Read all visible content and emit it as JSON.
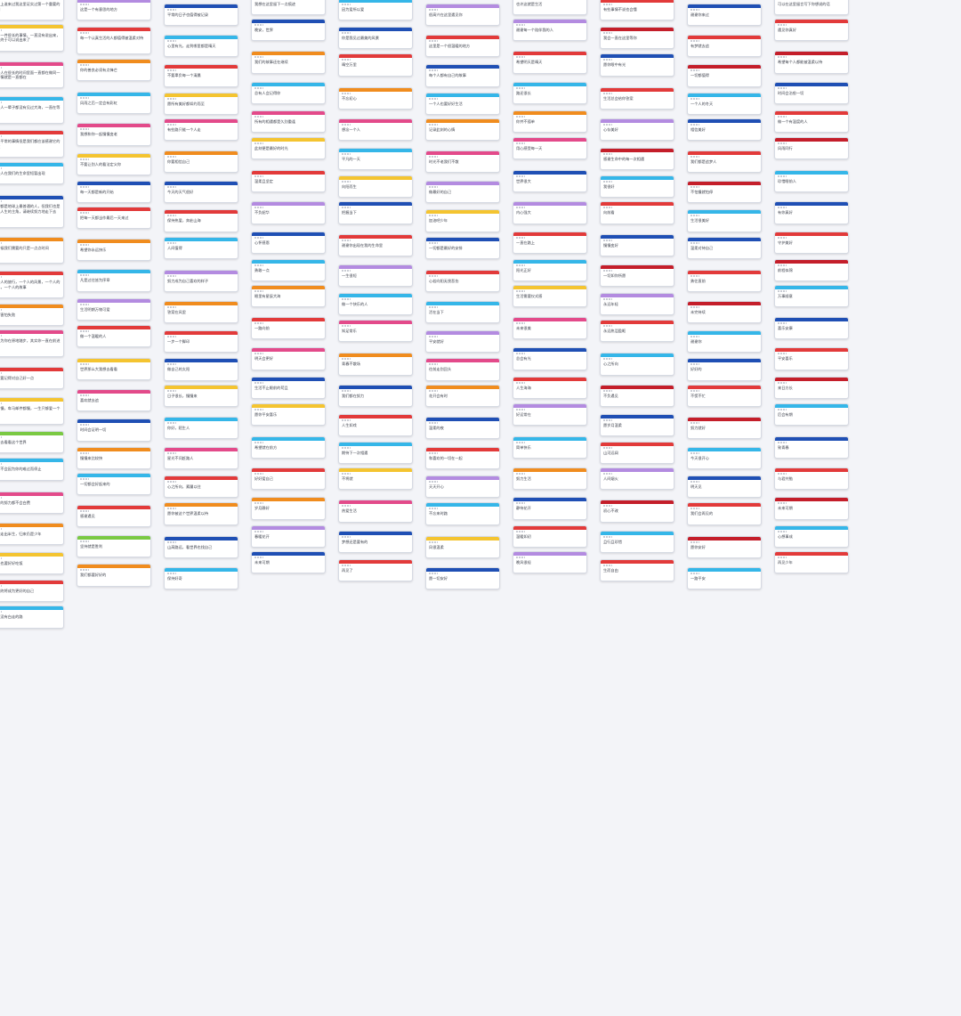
{
  "wall": {
    "theme_colors": [
      "#e23a3a",
      "#f08c1e",
      "#f4c430",
      "#35b6e8",
      "#1f4fb4",
      "#b38be0",
      "#7ac943",
      "#e34a8a",
      "#c41e2a"
    ],
    "columns": [
      [
        {
          "c": "#f08c1e",
          "t": "历史上谁来过我这里证实过第一个重要的认知"
        },
        {
          "c": "#f4c430",
          "t": "做了一件很长的事情，一直没有说出来，今天终于可以说出来了"
        },
        {
          "c": "#e34a8a",
          "t": "一个人在很长的时间里面一直都在做同一件事情就是一直都在"
        },
        {
          "c": "#35b6e8",
          "t": "很多人一辈子都没有见过大海，一直在等待"
        },
        {
          "c": "#e23a3a",
          "t": "这是平常的事情但是我们都应该感谢它的存在"
        },
        {
          "c": "#35b6e8",
          "t": "有些人在我们的生命里短暂出现"
        },
        {
          "c": "#1f4fb4",
          "t": "我们都是地球上最普通的人，但我们也是自己人生的主角，请继续努力地走下去"
        },
        {
          "c": "#f08c1e",
          "t": "有时候我们需要的只是一点点时间"
        },
        {
          "c": "#e23a3a",
          "t": "一个人的旅行，一个人的风景，一个人的回忆，一个人的故事"
        },
        {
          "c": "#f08c1e",
          "t": "不要害怕失败"
        },
        {
          "c": "#e34a8a",
          "t": "你以为你在原地踏步，其实你一直在前进"
        },
        {
          "c": "#e23a3a",
          "t": "一定要记得对自己好一点"
        },
        {
          "c": "#f4c430",
          "t": "从前慢，车马邮件都慢，一生只够爱一个人"
        },
        {
          "c": "#7ac943",
          "t": "我想去看看这个世界"
        },
        {
          "c": "#35b6e8",
          "t": "生活不会因为你的难过而停止"
        },
        {
          "c": "#e34a8a",
          "t": "所有的努力都不会白费"
        },
        {
          "c": "#f08c1e",
          "t": "愿你走出半生，归来仍是少年"
        },
        {
          "c": "#f4c430",
          "t": "今天也要好好吃饭"
        },
        {
          "c": "#e23a3a",
          "t": "我们终将成为更好的自己"
        },
        {
          "c": "#35b6e8",
          "t": "人生没有白走的路"
        }
      ],
      [
        {
          "c": "#b38be0",
          "t": "这是一个有意思的地方"
        },
        {
          "c": "#e23a3a",
          "t": "每一个认真生活的人都值得被温柔对待"
        },
        {
          "c": "#f08c1e",
          "t": "你的善良必须有点锋芒"
        },
        {
          "c": "#35b6e8",
          "t": "风雨之后一定会有彩虹"
        },
        {
          "c": "#e34a8a",
          "t": "我想和你一起慢慢变老"
        },
        {
          "c": "#f4c430",
          "t": "不要让别人的看法定义你"
        },
        {
          "c": "#1f4fb4",
          "t": "每一天都是新的开始"
        },
        {
          "c": "#e23a3a",
          "t": "把每一天都当作最后一天来过"
        },
        {
          "c": "#f08c1e",
          "t": "希望你永远快乐"
        },
        {
          "c": "#35b6e8",
          "t": "凡是过往皆为序章"
        },
        {
          "c": "#b38be0",
          "t": "生活明朗万物可爱"
        },
        {
          "c": "#e23a3a",
          "t": "做一个温暖的人"
        },
        {
          "c": "#f4c430",
          "t": "世界那么大我想去看看"
        },
        {
          "c": "#e34a8a",
          "t": "喜欢就去追"
        },
        {
          "c": "#1f4fb4",
          "t": "时间会证明一切"
        },
        {
          "c": "#f08c1e",
          "t": "慢慢来比较快"
        },
        {
          "c": "#35b6e8",
          "t": "一切都会好起来的"
        },
        {
          "c": "#e23a3a",
          "t": "感谢遇见"
        },
        {
          "c": "#7ac943",
          "t": "坚持就是胜利"
        },
        {
          "c": "#f08c1e",
          "t": "我们都要好好的"
        }
      ],
      [
        {
          "c": "#1f4fb4",
          "t": "平常的日子也值得被记录"
        },
        {
          "c": "#35b6e8",
          "t": "心里有光，走到哪里都是晴天"
        },
        {
          "c": "#e23a3a",
          "t": "不要辜负每一个清晨"
        },
        {
          "c": "#f4c430",
          "t": "愿所有美好都如约而至"
        },
        {
          "c": "#e34a8a",
          "t": "有些路只能一个人走"
        },
        {
          "c": "#f08c1e",
          "t": "你要相信自己"
        },
        {
          "c": "#1f4fb4",
          "t": "今天的天气很好"
        },
        {
          "c": "#e23a3a",
          "t": "保持热爱，奔赴山海"
        },
        {
          "c": "#35b6e8",
          "t": "人间值得"
        },
        {
          "c": "#b38be0",
          "t": "努力成为自己喜欢的样子"
        },
        {
          "c": "#f08c1e",
          "t": "答案在风里"
        },
        {
          "c": "#e23a3a",
          "t": "一步一个脚印"
        },
        {
          "c": "#1f4fb4",
          "t": "做自己的太阳"
        },
        {
          "c": "#f4c430",
          "t": "日子很长，慢慢来"
        },
        {
          "c": "#35b6e8",
          "t": "你好，陌生人"
        },
        {
          "c": "#e34a8a",
          "t": "星光不问赶路人"
        },
        {
          "c": "#e23a3a",
          "t": "心之所向，素履以往"
        },
        {
          "c": "#f08c1e",
          "t": "愿你被这个世界温柔以待"
        },
        {
          "c": "#1f4fb4",
          "t": "山高路远，看世界也找自己"
        },
        {
          "c": "#35b6e8",
          "t": "保持好奇"
        }
      ],
      [
        {
          "c": "#e23a3a",
          "t": "我想在这里留下一点痕迹"
        },
        {
          "c": "#1f4fb4",
          "t": "晚安，世界"
        },
        {
          "c": "#f08c1e",
          "t": "我们的故事还在继续"
        },
        {
          "c": "#35b6e8",
          "t": "总有人会记得你"
        },
        {
          "c": "#e34a8a",
          "t": "所有的相遇都是久别重逢"
        },
        {
          "c": "#f4c430",
          "t": "此刻便是最好的时光"
        },
        {
          "c": "#e23a3a",
          "t": "温柔且坚定"
        },
        {
          "c": "#b38be0",
          "t": "不负韶华"
        },
        {
          "c": "#1f4fb4",
          "t": "心怀感恩"
        },
        {
          "c": "#35b6e8",
          "t": "勇敢一点"
        },
        {
          "c": "#f08c1e",
          "t": "眼里有星辰大海"
        },
        {
          "c": "#e23a3a",
          "t": "一路向前"
        },
        {
          "c": "#e34a8a",
          "t": "明天会更好"
        },
        {
          "c": "#1f4fb4",
          "t": "生活不止眼前的苟且"
        },
        {
          "c": "#f4c430",
          "t": "愿你平安喜乐"
        },
        {
          "c": "#35b6e8",
          "t": "希望就在前方"
        },
        {
          "c": "#e23a3a",
          "t": "好好爱自己"
        },
        {
          "c": "#f08c1e",
          "t": "岁月静好"
        },
        {
          "c": "#b38be0",
          "t": "春暖花开"
        },
        {
          "c": "#1f4fb4",
          "t": "未来可期"
        }
      ],
      [
        {
          "c": "#35b6e8",
          "t": "因为爱所以爱"
        },
        {
          "c": "#1f4fb4",
          "t": "你是我见过最美的风景"
        },
        {
          "c": "#e23a3a",
          "t": "晴空万里"
        },
        {
          "c": "#f08c1e",
          "t": "不忘初心"
        },
        {
          "c": "#e34a8a",
          "t": "想念一个人"
        },
        {
          "c": "#35b6e8",
          "t": "平凡的一天"
        },
        {
          "c": "#f4c430",
          "t": "向阳而生"
        },
        {
          "c": "#1f4fb4",
          "t": "把握当下"
        },
        {
          "c": "#e23a3a",
          "t": "谢谢你出现在我的生命里"
        },
        {
          "c": "#b38be0",
          "t": "一生很短"
        },
        {
          "c": "#35b6e8",
          "t": "做一个快乐的人"
        },
        {
          "c": "#e34a8a",
          "t": "知足常乐"
        },
        {
          "c": "#f08c1e",
          "t": "青春不散场"
        },
        {
          "c": "#1f4fb4",
          "t": "我们都在努力"
        },
        {
          "c": "#e23a3a",
          "t": "人生如戏"
        },
        {
          "c": "#35b6e8",
          "t": "期待下一次相遇"
        },
        {
          "c": "#f4c430",
          "t": "不将就"
        },
        {
          "c": "#e34a8a",
          "t": "热爱生活"
        },
        {
          "c": "#1f4fb4",
          "t": "梦想还是要有的"
        },
        {
          "c": "#e23a3a",
          "t": "再见了"
        }
      ],
      [
        {
          "c": "#b38be0",
          "t": "很高兴在这里遇见你"
        },
        {
          "c": "#e23a3a",
          "t": "这里是一个很温暖的地方"
        },
        {
          "c": "#1f4fb4",
          "t": "每个人都有自己的故事"
        },
        {
          "c": "#35b6e8",
          "t": "一个人也要好好生活"
        },
        {
          "c": "#f08c1e",
          "t": "记录此刻的心情"
        },
        {
          "c": "#e34a8a",
          "t": "时光不老我们不散"
        },
        {
          "c": "#b38be0",
          "t": "做最好的自己"
        },
        {
          "c": "#f4c430",
          "t": "加油吧少年"
        },
        {
          "c": "#1f4fb4",
          "t": "一切都是最好的安排"
        },
        {
          "c": "#e23a3a",
          "t": "心若向阳无畏悲伤"
        },
        {
          "c": "#35b6e8",
          "t": "活在当下"
        },
        {
          "c": "#b38be0",
          "t": "平安就好"
        },
        {
          "c": "#e34a8a",
          "t": "往前走别回头"
        },
        {
          "c": "#f08c1e",
          "t": "花开会有时"
        },
        {
          "c": "#1f4fb4",
          "t": "温柔的夜"
        },
        {
          "c": "#e23a3a",
          "t": "和喜欢的一切在一起"
        },
        {
          "c": "#b38be0",
          "t": "天天开心"
        },
        {
          "c": "#35b6e8",
          "t": "不忘来时路"
        },
        {
          "c": "#f4c430",
          "t": "风很温柔"
        },
        {
          "c": "#1f4fb4",
          "t": "愿一切安好"
        }
      ],
      [
        {
          "c": "#1f4fb4",
          "t": "也许这就是生活"
        },
        {
          "c": "#b38be0",
          "t": "谢谢每一个陪伴我的人"
        },
        {
          "c": "#e23a3a",
          "t": "希望明天是晴天"
        },
        {
          "c": "#35b6e8",
          "t": "路还很长"
        },
        {
          "c": "#f08c1e",
          "t": "你并不孤单"
        },
        {
          "c": "#e34a8a",
          "t": "用心感受每一天"
        },
        {
          "c": "#1f4fb4",
          "t": "世界很大"
        },
        {
          "c": "#b38be0",
          "t": "内心强大"
        },
        {
          "c": "#e23a3a",
          "t": "一直在路上"
        },
        {
          "c": "#35b6e8",
          "t": "阳光正好"
        },
        {
          "c": "#f4c430",
          "t": "生活需要仪式感"
        },
        {
          "c": "#e34a8a",
          "t": "未来很美"
        },
        {
          "c": "#1f4fb4",
          "t": "总会有光"
        },
        {
          "c": "#e23a3a",
          "t": "人生海海"
        },
        {
          "c": "#b38be0",
          "t": "好运常在"
        },
        {
          "c": "#35b6e8",
          "t": "简单快乐"
        },
        {
          "c": "#f08c1e",
          "t": "努力生活"
        },
        {
          "c": "#1f4fb4",
          "t": "静待花开"
        },
        {
          "c": "#e23a3a",
          "t": "温暖如初"
        },
        {
          "c": "#b38be0",
          "t": "晚风很轻"
        }
      ],
      [
        {
          "c": "#e23a3a",
          "t": "有些事情不说也会懂"
        },
        {
          "c": "#c41e2a",
          "t": "我会一直在这里等你"
        },
        {
          "c": "#1f4fb4",
          "t": "愿你眼中有光"
        },
        {
          "c": "#e23a3a",
          "t": "生活总会给你答案"
        },
        {
          "c": "#b38be0",
          "t": "心存美好"
        },
        {
          "c": "#c41e2a",
          "t": "感谢生命中的每一次相遇"
        },
        {
          "c": "#35b6e8",
          "t": "我很好"
        },
        {
          "c": "#e23a3a",
          "t": "向前看"
        },
        {
          "c": "#1f4fb4",
          "t": "慢慢变好"
        },
        {
          "c": "#c41e2a",
          "t": "一切如你所愿"
        },
        {
          "c": "#b38be0",
          "t": "永远年轻"
        },
        {
          "c": "#e23a3a",
          "t": "永远热泪盈眶"
        },
        {
          "c": "#35b6e8",
          "t": "心之所向"
        },
        {
          "c": "#c41e2a",
          "t": "不负遇见"
        },
        {
          "c": "#1f4fb4",
          "t": "愿岁月温柔"
        },
        {
          "c": "#e23a3a",
          "t": "山河远阔"
        },
        {
          "c": "#b38be0",
          "t": "人间烟火"
        },
        {
          "c": "#c41e2a",
          "t": "初心不改"
        },
        {
          "c": "#35b6e8",
          "t": "且行且珍惜"
        },
        {
          "c": "#e23a3a",
          "t": "生而自由"
        }
      ],
      [
        {
          "c": "#1f4fb4",
          "t": "谢谢你来过"
        },
        {
          "c": "#e23a3a",
          "t": "有梦就去追"
        },
        {
          "c": "#c41e2a",
          "t": "一切都值得"
        },
        {
          "c": "#35b6e8",
          "t": "一个人的冬天"
        },
        {
          "c": "#1f4fb4",
          "t": "相信美好"
        },
        {
          "c": "#e23a3a",
          "t": "我们都是追梦人"
        },
        {
          "c": "#c41e2a",
          "t": "不怕慢就怕停"
        },
        {
          "c": "#35b6e8",
          "t": "生活很美好"
        },
        {
          "c": "#1f4fb4",
          "t": "温柔对待自己"
        },
        {
          "c": "#e23a3a",
          "t": "勇往直前"
        },
        {
          "c": "#c41e2a",
          "t": "未完待续"
        },
        {
          "c": "#35b6e8",
          "t": "谢谢你"
        },
        {
          "c": "#1f4fb4",
          "t": "好好的"
        },
        {
          "c": "#e23a3a",
          "t": "不慌不忙"
        },
        {
          "c": "#c41e2a",
          "t": "努力就好"
        },
        {
          "c": "#35b6e8",
          "t": "今天很开心"
        },
        {
          "c": "#1f4fb4",
          "t": "明天见"
        },
        {
          "c": "#e23a3a",
          "t": "我们会再见的"
        },
        {
          "c": "#c41e2a",
          "t": "愿你安好"
        },
        {
          "c": "#35b6e8",
          "t": "一路平安"
        }
      ],
      [
        {
          "c": "#35b6e8",
          "t": "可以在这里留言写下你想说的话"
        },
        {
          "c": "#e23a3a",
          "t": "遇见你真好"
        },
        {
          "c": "#c41e2a",
          "t": "希望每个人都能被温柔以待"
        },
        {
          "c": "#1f4fb4",
          "t": "时间会治愈一切"
        },
        {
          "c": "#e23a3a",
          "t": "做一个有温度的人"
        },
        {
          "c": "#c41e2a",
          "t": "风雨同行"
        },
        {
          "c": "#35b6e8",
          "t": "珍惜眼前人"
        },
        {
          "c": "#1f4fb4",
          "t": "有你真好"
        },
        {
          "c": "#e23a3a",
          "t": "守护美好"
        },
        {
          "c": "#c41e2a",
          "t": "前程似锦"
        },
        {
          "c": "#35b6e8",
          "t": "万事顺意"
        },
        {
          "c": "#1f4fb4",
          "t": "喜乐安康"
        },
        {
          "c": "#e23a3a",
          "t": "平安喜乐"
        },
        {
          "c": "#c41e2a",
          "t": "来日方长"
        },
        {
          "c": "#35b6e8",
          "t": "后会有期"
        },
        {
          "c": "#1f4fb4",
          "t": "致青春"
        },
        {
          "c": "#e23a3a",
          "t": "与君共勉"
        },
        {
          "c": "#c41e2a",
          "t": "未来可期"
        },
        {
          "c": "#35b6e8",
          "t": "心想事成"
        },
        {
          "c": "#e23a3a",
          "t": "再见少年"
        }
      ]
    ]
  }
}
